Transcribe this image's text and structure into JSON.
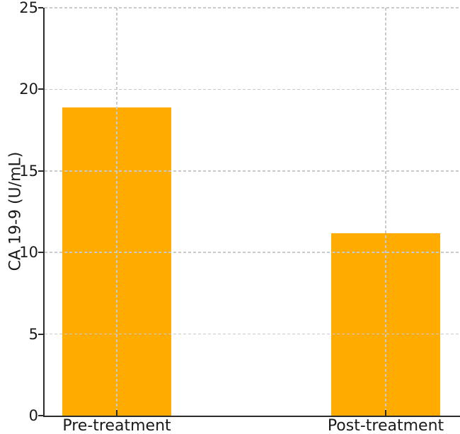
{
  "chart_data": {
    "type": "bar",
    "categories": [
      "Pre-treatment",
      "Post-treatment"
    ],
    "values": [
      18.9,
      11.2
    ],
    "title": "",
    "xlabel": "",
    "ylabel": "CA 19-9 (U/mL)",
    "ylim": [
      0,
      25
    ],
    "yticks": [
      0,
      5,
      10,
      15,
      20,
      25
    ],
    "legend": "none",
    "grid": "dashed, horizontal at every y tick and vertical at each bar center, drawn above bars",
    "bar_color": "#FFAB00",
    "grid_color": "#C9C9C9",
    "axis_color": "#2B2B2B",
    "text_color": "#1A1A1A",
    "background_color": "#FFFFFF"
  }
}
